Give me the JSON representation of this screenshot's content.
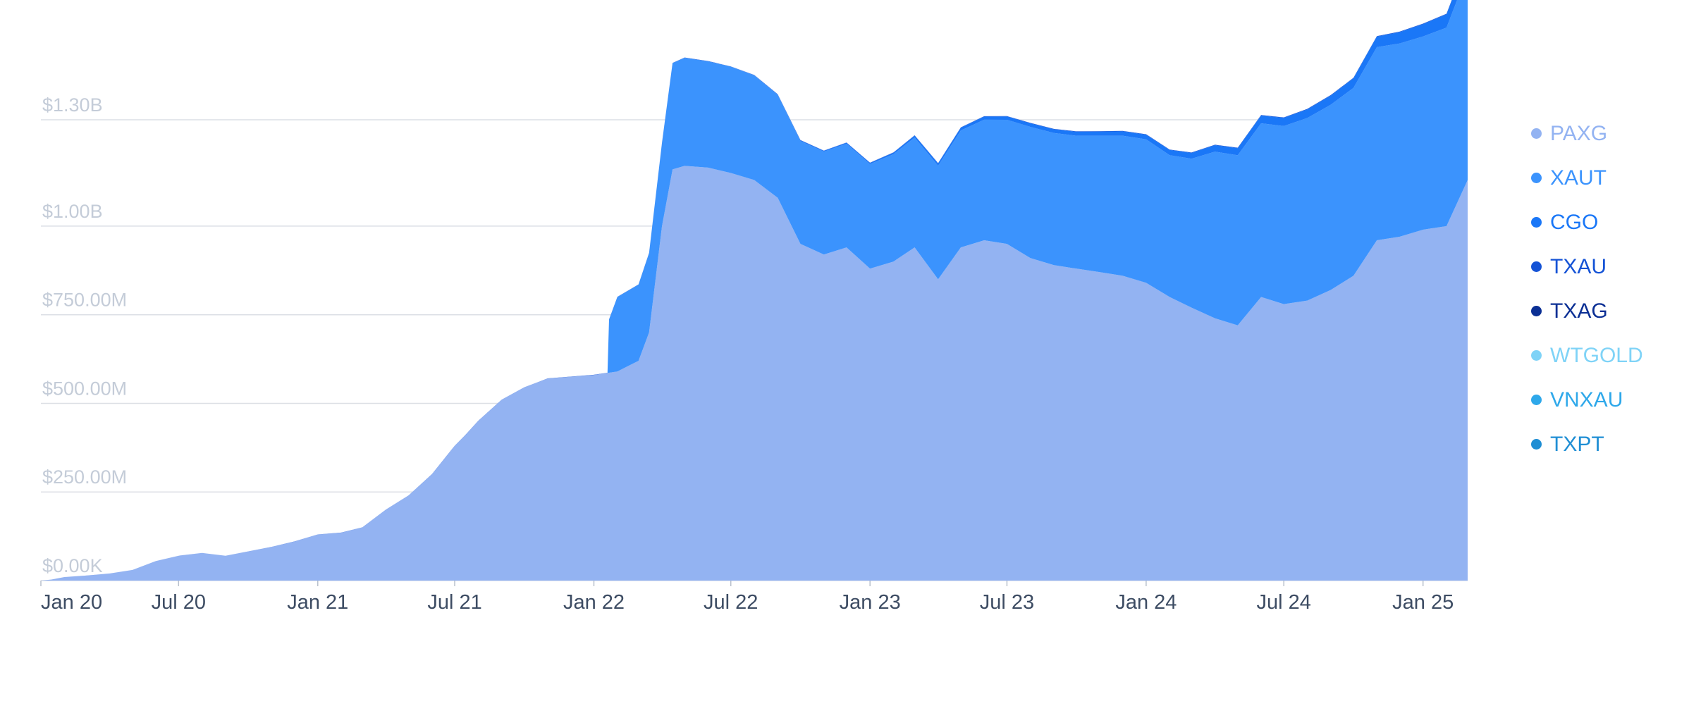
{
  "chart_data": {
    "type": "area",
    "stacked": true,
    "title": "",
    "xlabel": "",
    "ylabel": "",
    "x_ticks": [
      "Jan 20",
      "Jul 20",
      "Jan 21",
      "Jul 21",
      "Jan 22",
      "Jul 22",
      "Jan 23",
      "Jul 23",
      "Jan 24",
      "Jul 24",
      "Jan 25"
    ],
    "y_ticks": [
      {
        "value": 0,
        "label": "$0.00K"
      },
      {
        "value": 250000000,
        "label": "$250.00M"
      },
      {
        "value": 500000000,
        "label": "$500.00M"
      },
      {
        "value": 750000000,
        "label": "$750.00M"
      },
      {
        "value": 1000000000,
        "label": "$1.00B"
      },
      {
        "value": 1300000000,
        "label": "$1.30B"
      }
    ],
    "ylim": [
      0,
      1300000000
    ],
    "xlim": [
      "2020-01-01",
      "2025-03-01"
    ],
    "grid": true,
    "legend_position": "right",
    "series": [
      {
        "name": "PAXG",
        "color": "#93b3f2",
        "points": [
          [
            "2020-01-01",
            0
          ],
          [
            "2020-01-15",
            3000000
          ],
          [
            "2020-02-01",
            10000000
          ],
          [
            "2020-03-01",
            14000000
          ],
          [
            "2020-04-01",
            20000000
          ],
          [
            "2020-05-01",
            30000000
          ],
          [
            "2020-06-01",
            55000000
          ],
          [
            "2020-07-01",
            70000000
          ],
          [
            "2020-08-01",
            78000000
          ],
          [
            "2020-09-01",
            70000000
          ],
          [
            "2020-10-01",
            82000000
          ],
          [
            "2020-11-01",
            95000000
          ],
          [
            "2020-12-01",
            110000000
          ],
          [
            "2021-01-01",
            130000000
          ],
          [
            "2021-02-01",
            135000000
          ],
          [
            "2021-03-01",
            150000000
          ],
          [
            "2021-04-01",
            200000000
          ],
          [
            "2021-05-01",
            240000000
          ],
          [
            "2021-06-01",
            300000000
          ],
          [
            "2021-07-01",
            380000000
          ],
          [
            "2021-07-15",
            410000000
          ],
          [
            "2021-08-01",
            450000000
          ],
          [
            "2021-09-01",
            510000000
          ],
          [
            "2021-10-01",
            545000000
          ],
          [
            "2021-11-01",
            570000000
          ],
          [
            "2021-12-01",
            575000000
          ],
          [
            "2022-01-01",
            580000000
          ],
          [
            "2022-02-01",
            590000000
          ],
          [
            "2022-03-01",
            620000000
          ],
          [
            "2022-03-15",
            700000000
          ],
          [
            "2022-04-01",
            1000000000
          ],
          [
            "2022-04-15",
            1160000000
          ],
          [
            "2022-05-01",
            1170000000
          ],
          [
            "2022-06-01",
            1165000000
          ],
          [
            "2022-07-01",
            1150000000
          ],
          [
            "2022-08-01",
            1130000000
          ],
          [
            "2022-09-01",
            1080000000
          ],
          [
            "2022-10-01",
            950000000
          ],
          [
            "2022-11-01",
            920000000
          ],
          [
            "2022-12-01",
            940000000
          ],
          [
            "2023-01-01",
            880000000
          ],
          [
            "2023-02-01",
            900000000
          ],
          [
            "2023-03-01",
            940000000
          ],
          [
            "2023-04-01",
            850000000
          ],
          [
            "2023-05-01",
            940000000
          ],
          [
            "2023-06-01",
            960000000
          ],
          [
            "2023-07-01",
            950000000
          ],
          [
            "2023-08-01",
            910000000
          ],
          [
            "2023-09-01",
            890000000
          ],
          [
            "2023-10-01",
            880000000
          ],
          [
            "2023-11-01",
            870000000
          ],
          [
            "2023-12-01",
            860000000
          ],
          [
            "2024-01-01",
            840000000
          ],
          [
            "2024-02-01",
            800000000
          ],
          [
            "2024-03-01",
            770000000
          ],
          [
            "2024-04-01",
            740000000
          ],
          [
            "2024-05-01",
            720000000
          ],
          [
            "2024-06-01",
            800000000
          ],
          [
            "2024-07-01",
            780000000
          ],
          [
            "2024-08-01",
            790000000
          ],
          [
            "2024-09-01",
            820000000
          ],
          [
            "2024-10-01",
            860000000
          ],
          [
            "2024-11-01",
            960000000
          ],
          [
            "2024-12-01",
            970000000
          ],
          [
            "2025-01-01",
            990000000
          ],
          [
            "2025-02-01",
            1000000000
          ],
          [
            "2025-03-01",
            1130000000
          ]
        ]
      },
      {
        "name": "XAUT",
        "color": "#3b93fd",
        "points": [
          [
            "2020-01-01",
            0
          ],
          [
            "2022-01-19",
            0
          ],
          [
            "2022-01-21",
            150000000
          ],
          [
            "2022-02-01",
            210000000
          ],
          [
            "2022-03-01",
            215000000
          ],
          [
            "2022-04-01",
            235000000
          ],
          [
            "2022-04-15",
            300000000
          ],
          [
            "2022-05-01",
            305000000
          ],
          [
            "2022-06-01",
            300000000
          ],
          [
            "2022-07-01",
            300000000
          ],
          [
            "2022-09-01",
            290000000
          ],
          [
            "2022-11-01",
            290000000
          ],
          [
            "2023-01-01",
            295000000
          ],
          [
            "2023-03-01",
            310000000
          ],
          [
            "2023-05-01",
            330000000
          ],
          [
            "2023-07-01",
            350000000
          ],
          [
            "2023-08-01",
            370000000
          ],
          [
            "2023-10-01",
            375000000
          ],
          [
            "2023-11-01",
            385000000
          ],
          [
            "2023-12-01",
            395000000
          ],
          [
            "2024-01-01",
            405000000
          ],
          [
            "2024-02-01",
            400000000
          ],
          [
            "2024-03-01",
            420000000
          ],
          [
            "2024-04-01",
            470000000
          ],
          [
            "2024-06-01",
            490000000
          ],
          [
            "2024-08-01",
            515000000
          ],
          [
            "2024-10-01",
            530000000
          ],
          [
            "2024-11-01",
            545000000
          ],
          [
            "2025-01-01",
            545000000
          ],
          [
            "2025-02-01",
            560000000
          ],
          [
            "2025-03-01",
            585000000
          ]
        ]
      },
      {
        "name": "CGO",
        "color": "#1a77f7",
        "points": [
          [
            "2020-01-01",
            0
          ],
          [
            "2022-07-01",
            0
          ],
          [
            "2022-10-01",
            2000000
          ],
          [
            "2023-01-01",
            3000000
          ],
          [
            "2023-06-01",
            9000000
          ],
          [
            "2024-01-01",
            13000000
          ],
          [
            "2024-06-01",
            22000000
          ],
          [
            "2024-10-01",
            27000000
          ],
          [
            "2025-03-01",
            40000000
          ]
        ]
      },
      {
        "name": "TXAU",
        "color": "#1553d6",
        "points": [
          [
            "2020-01-01",
            0
          ],
          [
            "2025-03-01",
            1500000
          ]
        ]
      },
      {
        "name": "TXAG",
        "color": "#0b2f94",
        "points": [
          [
            "2020-01-01",
            0
          ],
          [
            "2025-03-01",
            0
          ]
        ]
      },
      {
        "name": "WTGOLD",
        "color": "#7fd3f7",
        "points": [
          [
            "2020-01-01",
            0
          ],
          [
            "2025-03-01",
            0
          ]
        ]
      },
      {
        "name": "VNXAU",
        "color": "#2ea8ea",
        "points": [
          [
            "2020-01-01",
            0
          ],
          [
            "2025-03-01",
            0
          ]
        ]
      },
      {
        "name": "TXPT",
        "color": "#1f8ed4",
        "points": [
          [
            "2020-01-01",
            0
          ],
          [
            "2025-03-01",
            0
          ]
        ]
      }
    ]
  }
}
